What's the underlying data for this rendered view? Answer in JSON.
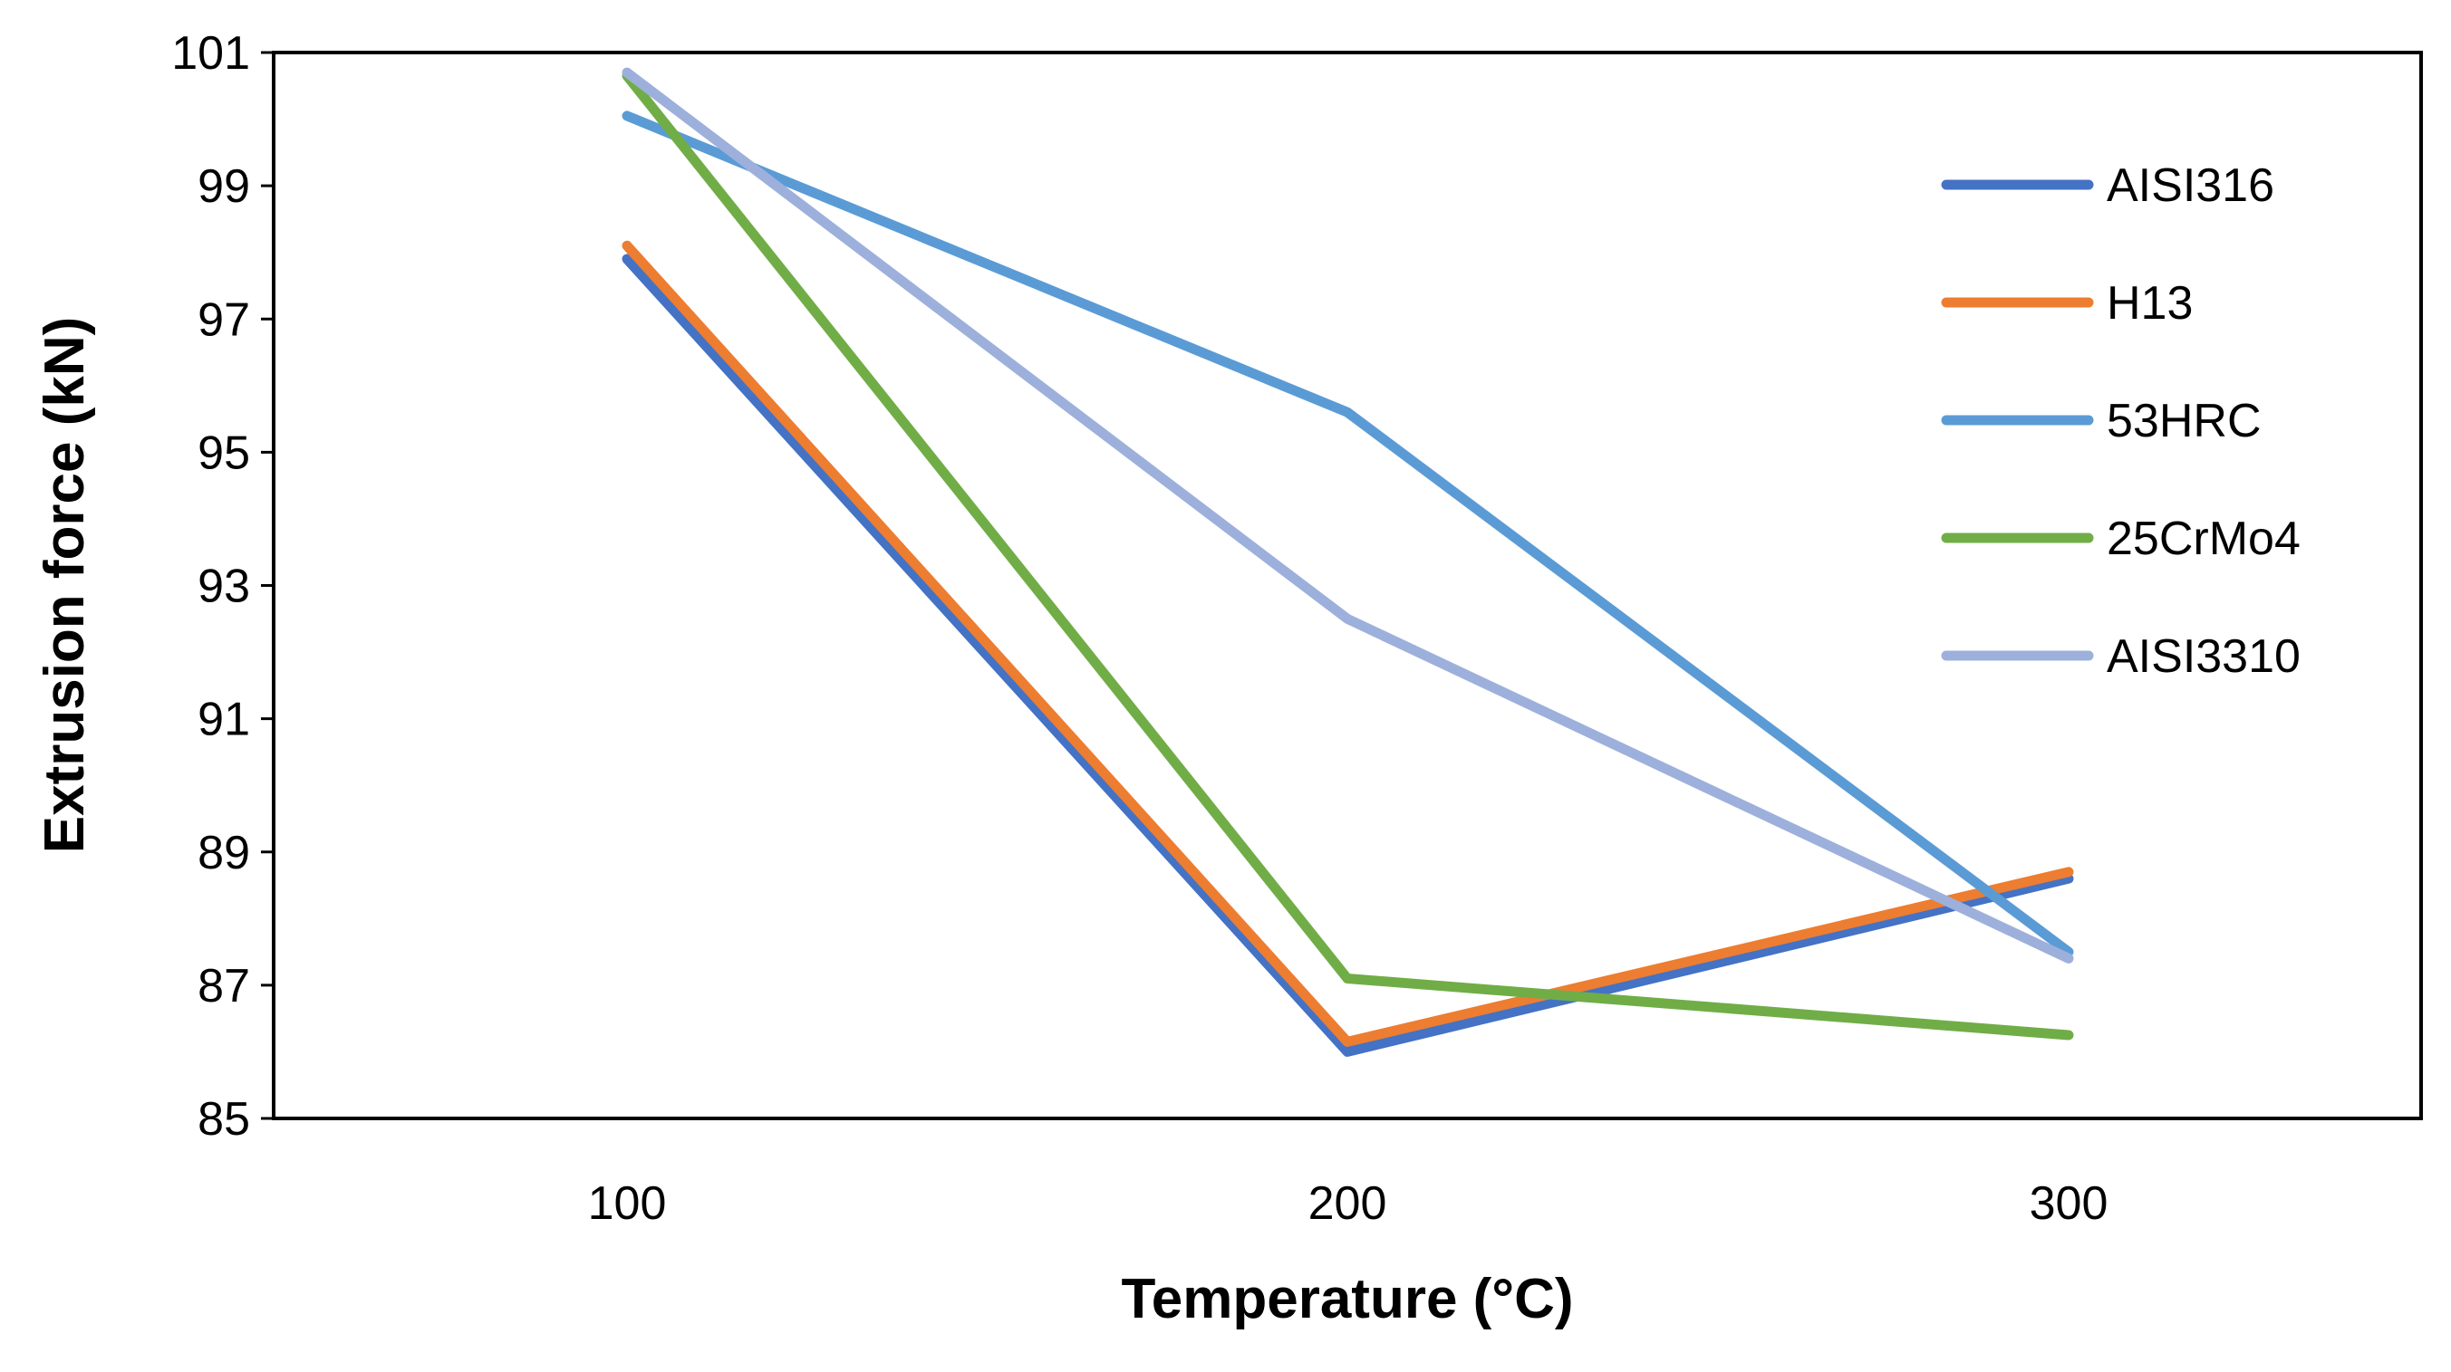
{
  "chart_data": {
    "type": "line",
    "title": "",
    "xlabel": "Temperature (°C)",
    "ylabel": "Extrusion force (kN)",
    "x": [
      100,
      200,
      300
    ],
    "x_tick_labels": [
      "100",
      "200",
      "300"
    ],
    "y_tick_labels": [
      "85",
      "87",
      "89",
      "91",
      "93",
      "95",
      "97",
      "99",
      "101"
    ],
    "ylim": [
      85,
      101
    ],
    "grid": false,
    "legend_position": "right",
    "series": [
      {
        "name": "AISI316",
        "color": "#4472C4",
        "values": [
          97.9,
          86.0,
          88.6
        ]
      },
      {
        "name": "H13",
        "color": "#ED7D31",
        "values": [
          98.1,
          86.15,
          88.7
        ]
      },
      {
        "name": "53HRC",
        "color": "#5B9BD5",
        "values": [
          100.05,
          95.6,
          87.5
        ]
      },
      {
        "name": "25CrMo4",
        "color": "#70AD47",
        "values": [
          100.65,
          87.1,
          86.25
        ]
      },
      {
        "name": "AISI3310",
        "color": "#9DB0DC",
        "values": [
          100.7,
          92.5,
          87.4
        ]
      }
    ]
  }
}
